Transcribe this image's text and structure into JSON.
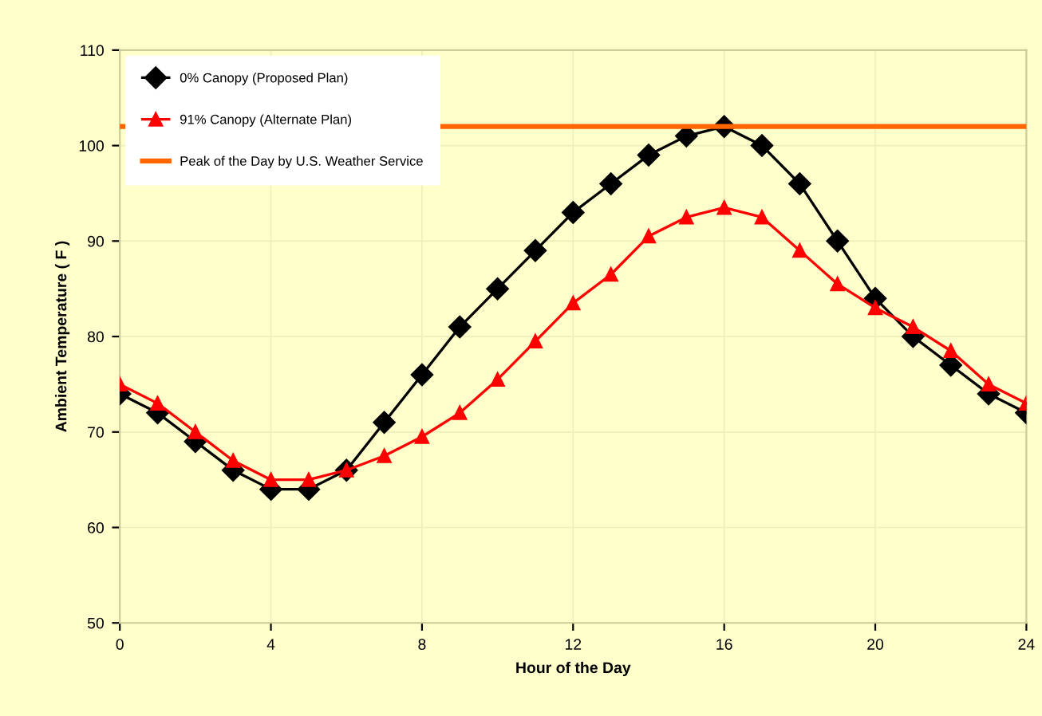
{
  "chart_data": {
    "type": "line",
    "xlabel": "Hour of the Day",
    "ylabel": "Ambient Temperature ( F )",
    "x": [
      0,
      1,
      2,
      3,
      4,
      5,
      6,
      7,
      8,
      9,
      10,
      11,
      12,
      13,
      14,
      15,
      16,
      17,
      18,
      19,
      20,
      21,
      22,
      23,
      24
    ],
    "series": [
      {
        "name": "0% Canopy (Proposed Plan)",
        "color": "#000000",
        "marker": "diamond",
        "values": [
          74,
          72,
          69,
          66,
          64,
          64,
          66,
          71,
          76,
          81,
          85,
          89,
          93,
          96,
          99,
          101,
          102,
          100,
          96,
          90,
          84,
          80,
          77,
          74,
          72
        ]
      },
      {
        "name": "91% Canopy (Alternate Plan)",
        "color": "#ff0000",
        "marker": "triangle",
        "values": [
          75,
          73,
          70,
          67,
          65,
          65,
          66,
          67.5,
          69.5,
          72,
          75.5,
          79.5,
          83.5,
          86.5,
          90.5,
          92.5,
          93.5,
          92.5,
          89,
          85.5,
          83,
          81,
          78.5,
          75,
          73
        ]
      },
      {
        "name": "Peak of the Day by U.S. Weather Service",
        "color": "#ff6600",
        "marker": "none",
        "x": [
          0,
          24
        ],
        "values": [
          102,
          102
        ]
      }
    ],
    "xlim": [
      0,
      24
    ],
    "xticks": [
      0,
      4,
      8,
      12,
      16,
      20,
      24
    ],
    "ylim": [
      50,
      110
    ],
    "yticks": [
      50,
      60,
      70,
      80,
      90,
      100,
      110
    ],
    "grid": true,
    "legend": "top left",
    "line_style": "solid"
  }
}
